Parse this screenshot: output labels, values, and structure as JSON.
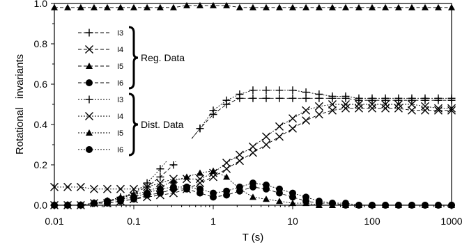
{
  "chart_data": {
    "type": "line",
    "xlabel": "T (s)",
    "ylabel": "Rotational   invariants",
    "xscale": "log",
    "xlim": [
      0.01,
      1000
    ],
    "ylim": [
      0.0,
      1.0
    ],
    "xticks": [
      {
        "value": 0.01,
        "label": "0.01"
      },
      {
        "value": 0.1,
        "label": "0.1"
      },
      {
        "value": 1,
        "label": "1"
      },
      {
        "value": 10,
        "label": "10"
      },
      {
        "value": 100,
        "label": "100"
      },
      {
        "value": 1000,
        "label": "1000"
      }
    ],
    "yticks": [
      {
        "value": 0.0,
        "label": "0.0"
      },
      {
        "value": 0.2,
        "label": "0.2"
      },
      {
        "value": 0.4,
        "label": "0.4"
      },
      {
        "value": 0.6,
        "label": "0.6"
      },
      {
        "value": 0.8,
        "label": "0.8"
      },
      {
        "value": 1.0,
        "label": "1.0"
      }
    ],
    "grid": false,
    "legend_position": "upper-left",
    "legend_groups": [
      {
        "label": "Reg. Data",
        "entries": [
          "I3",
          "I4",
          "I5",
          "I6"
        ]
      },
      {
        "label": "Dist. Data",
        "entries": [
          "I3",
          "I4",
          "I5",
          "I6"
        ]
      }
    ],
    "x": [
      0.01,
      0.0147,
      0.0215,
      0.0316,
      0.0464,
      0.0681,
      0.1,
      0.147,
      0.215,
      0.316,
      0.464,
      0.681,
      1,
      1.47,
      2.15,
      3.16,
      4.64,
      6.81,
      10,
      14.7,
      21.5,
      31.6,
      46.4,
      68.1,
      100,
      147,
      215,
      316,
      464,
      681,
      1000
    ],
    "series": [
      {
        "name": "I3",
        "group": "Reg. Data",
        "marker": "plus",
        "values": [
          0.0,
          0.0,
          0.0,
          0.01,
          0.02,
          0.03,
          0.06,
          0.09,
          0.14,
          0.2,
          0.3,
          0.38,
          0.45,
          0.5,
          0.53,
          0.53,
          0.53,
          0.53,
          0.53,
          0.53,
          0.53,
          0.53,
          0.53,
          0.52,
          0.52,
          0.52,
          0.52,
          0.52,
          0.52,
          0.52,
          0.52
        ]
      },
      {
        "name": "I4",
        "group": "Reg. Data",
        "marker": "cross",
        "values": [
          0.0,
          0.0,
          0.0,
          0.01,
          0.01,
          0.02,
          0.03,
          0.04,
          0.05,
          0.06,
          0.08,
          0.11,
          0.14,
          0.18,
          0.22,
          0.26,
          0.3,
          0.34,
          0.38,
          0.42,
          0.45,
          0.47,
          0.48,
          0.48,
          0.48,
          0.48,
          0.48,
          0.47,
          0.47,
          0.47,
          0.47
        ]
      },
      {
        "name": "I5",
        "group": "Reg. Data",
        "marker": "triangle",
        "values": [
          0.98,
          0.98,
          0.98,
          0.98,
          0.98,
          0.98,
          0.98,
          0.98,
          0.98,
          0.98,
          0.99,
          0.99,
          0.99,
          0.99,
          0.98,
          0.98,
          0.98,
          0.98,
          0.98,
          0.98,
          0.98,
          0.98,
          0.98,
          0.98,
          0.98,
          0.98,
          0.98,
          0.98,
          0.98,
          0.98,
          0.98
        ]
      },
      {
        "name": "I6",
        "group": "Reg. Data",
        "marker": "circle",
        "values": [
          0.0,
          0.0,
          0.0,
          0.01,
          0.01,
          0.02,
          0.03,
          0.05,
          0.06,
          0.08,
          0.08,
          0.06,
          0.04,
          0.05,
          0.07,
          0.09,
          0.08,
          0.06,
          0.04,
          0.02,
          0.01,
          0.01,
          0.0,
          0.0,
          0.0,
          0.0,
          0.0,
          0.0,
          0.0,
          0.0,
          0.0
        ]
      },
      {
        "name": "I3",
        "group": "Dist. Data",
        "marker": "plus",
        "values": [
          0.0,
          0.0,
          0.0,
          0.01,
          0.02,
          0.04,
          0.06,
          0.11,
          0.18,
          0.26,
          0.3,
          0.38,
          0.47,
          0.52,
          0.55,
          0.57,
          0.57,
          0.57,
          0.57,
          0.56,
          0.55,
          0.54,
          0.54,
          0.53,
          0.53,
          0.53,
          0.53,
          0.53,
          0.53,
          0.53,
          0.53
        ]
      },
      {
        "name": "I4",
        "group": "Dist. Data",
        "marker": "cross",
        "values": [
          0.09,
          0.09,
          0.09,
          0.08,
          0.08,
          0.08,
          0.08,
          0.09,
          0.11,
          0.13,
          0.13,
          0.13,
          0.16,
          0.21,
          0.25,
          0.29,
          0.34,
          0.39,
          0.43,
          0.47,
          0.49,
          0.5,
          0.5,
          0.5,
          0.5,
          0.5,
          0.5,
          0.5,
          0.49,
          0.48,
          0.48
        ]
      },
      {
        "name": "I5",
        "group": "Dist. Data",
        "marker": "triangle",
        "values": [
          0.0,
          0.0,
          0.0,
          0.01,
          0.02,
          0.04,
          0.05,
          0.07,
          0.09,
          0.12,
          0.14,
          0.16,
          0.17,
          0.14,
          0.08,
          0.04,
          0.03,
          0.02,
          0.01,
          0.01,
          0.0,
          0.0,
          0.0,
          0.0,
          0.0,
          0.0,
          0.0,
          0.0,
          0.0,
          0.0,
          0.0
        ]
      },
      {
        "name": "I6",
        "group": "Dist. Data",
        "marker": "circle",
        "values": [
          0.0,
          0.0,
          0.0,
          0.01,
          0.02,
          0.03,
          0.04,
          0.06,
          0.08,
          0.09,
          0.09,
          0.08,
          0.06,
          0.07,
          0.09,
          0.11,
          0.1,
          0.08,
          0.06,
          0.04,
          0.02,
          0.01,
          0.01,
          0.0,
          0.0,
          0.0,
          0.0,
          0.0,
          0.0,
          0.0,
          0.0
        ]
      }
    ]
  }
}
